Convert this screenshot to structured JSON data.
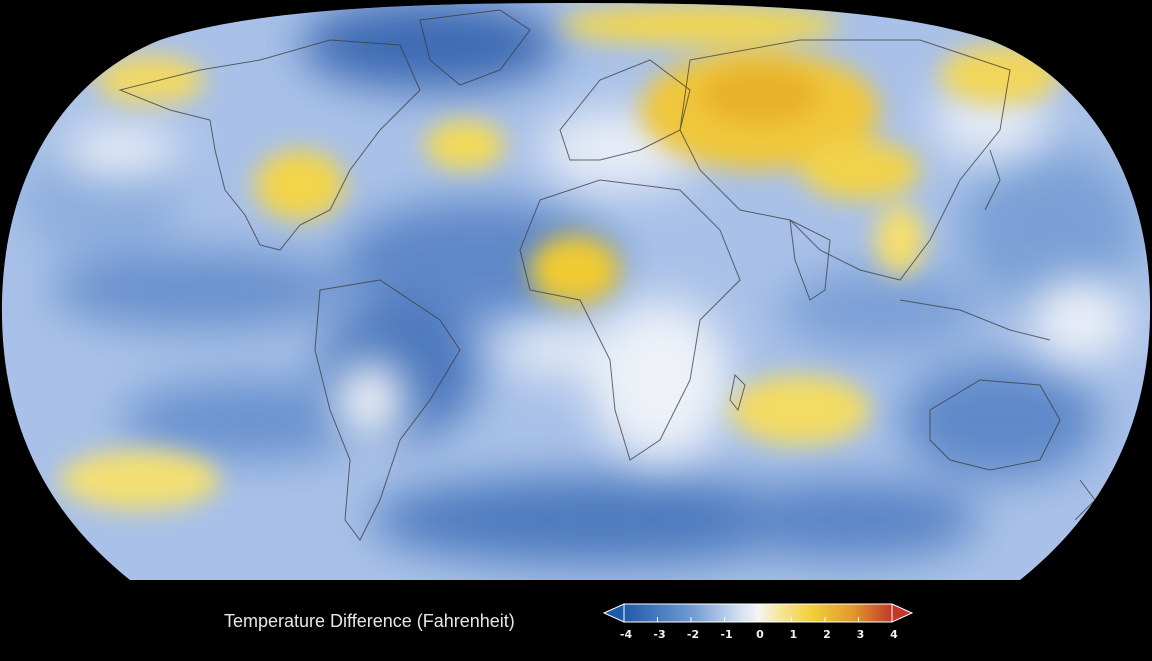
{
  "legend": {
    "title": "Temperature Difference (Fahrenheit)",
    "ticks": [
      "-4",
      "-3",
      "-2",
      "-1",
      "0",
      "1",
      "2",
      "3",
      "4"
    ],
    "colors": {
      "cold_end": "#1f5aa8",
      "mid_cold": "#7fa6d9",
      "neutral": "#f3f3f3",
      "mid_warm": "#f0d447",
      "warm_end": "#c0392b"
    }
  }
}
